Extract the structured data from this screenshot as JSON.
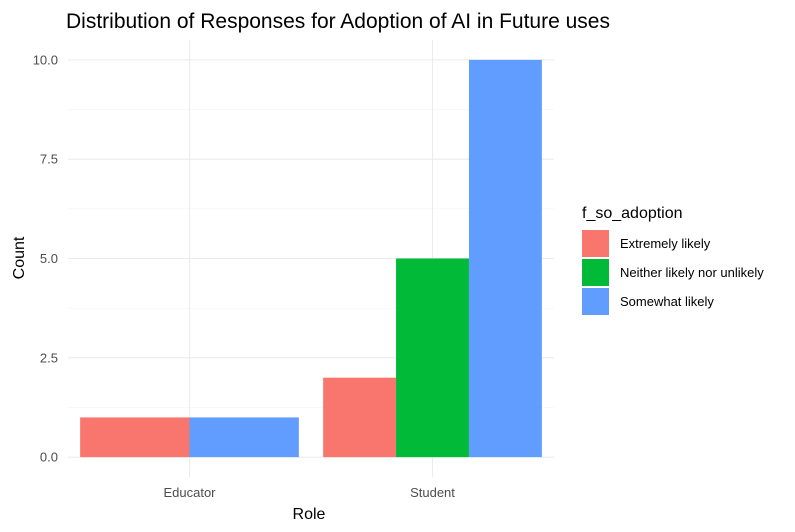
{
  "chart_data": {
    "type": "bar",
    "title": "Distribution of Responses for Adoption of AI in Future uses",
    "xlabel": "Role",
    "ylabel": "Count",
    "categories": [
      "Educator",
      "Student"
    ],
    "ylim": [
      0,
      10
    ],
    "yticks": [
      "0.0",
      "2.5",
      "5.0",
      "7.5",
      "10.0"
    ],
    "ytick_values": [
      0,
      2.5,
      5,
      7.5,
      10
    ],
    "grid": true,
    "legend": {
      "title": "f_so_adoption",
      "placement": "right"
    },
    "series": [
      {
        "name": "Extremely likely",
        "color": "#F8766D",
        "values": [
          1,
          2
        ]
      },
      {
        "name": "Neither likely nor unlikely",
        "color": "#00BA38",
        "values": [
          0,
          5
        ]
      },
      {
        "name": "Somewhat likely",
        "color": "#619CFF",
        "values": [
          1,
          10
        ]
      }
    ]
  }
}
